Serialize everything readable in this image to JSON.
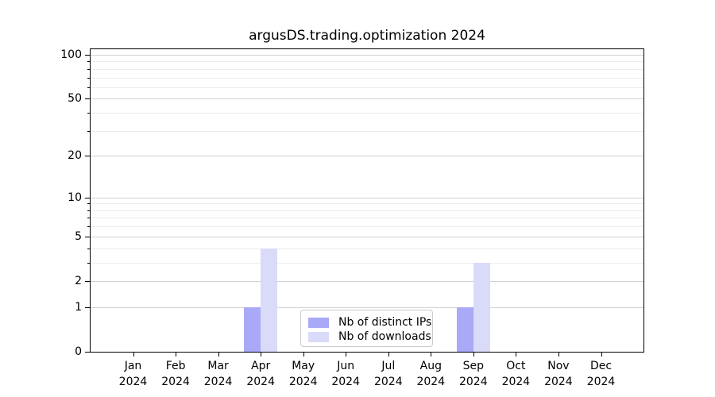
{
  "colors": {
    "distinct_ips": "#a9a9f8",
    "downloads": "#dadaf9",
    "grid_major": "#d2d2d2",
    "grid_minor": "#ececec",
    "spine": "#000000",
    "background": "#ffffff",
    "text": "#000000",
    "legend_border": "#cccccc"
  },
  "chart_data": {
    "type": "bar",
    "title": "argusDS.trading.optimization 2024",
    "categories": [
      "Jan 2024",
      "Feb 2024",
      "Mar 2024",
      "Apr 2024",
      "May 2024",
      "Jun 2024",
      "Jul 2024",
      "Aug 2024",
      "Sep 2024",
      "Oct 2024",
      "Nov 2024",
      "Dec 2024"
    ],
    "x_tick_month": [
      "Jan",
      "Feb",
      "Mar",
      "Apr",
      "May",
      "Jun",
      "Jul",
      "Aug",
      "Sep",
      "Oct",
      "Nov",
      "Dec"
    ],
    "x_tick_year": "2024",
    "series": [
      {
        "name": "Nb of distinct IPs",
        "color_key": "distinct_ips",
        "values": [
          0,
          0,
          0,
          1,
          0,
          0,
          0,
          0,
          1,
          0,
          0,
          0
        ]
      },
      {
        "name": "Nb of downloads",
        "color_key": "downloads",
        "values": [
          0,
          0,
          0,
          4,
          0,
          0,
          0,
          0,
          3,
          0,
          0,
          0
        ]
      }
    ],
    "yscale": "log1p",
    "ylim": [
      0,
      109
    ],
    "y_major_ticks": [
      0,
      1,
      2,
      5,
      10,
      20,
      50,
      100
    ],
    "y_minor_ticks": [
      3,
      4,
      6,
      7,
      8,
      9,
      30,
      40,
      60,
      70,
      80,
      90
    ],
    "grid": "on",
    "legend_position": "lower center"
  }
}
